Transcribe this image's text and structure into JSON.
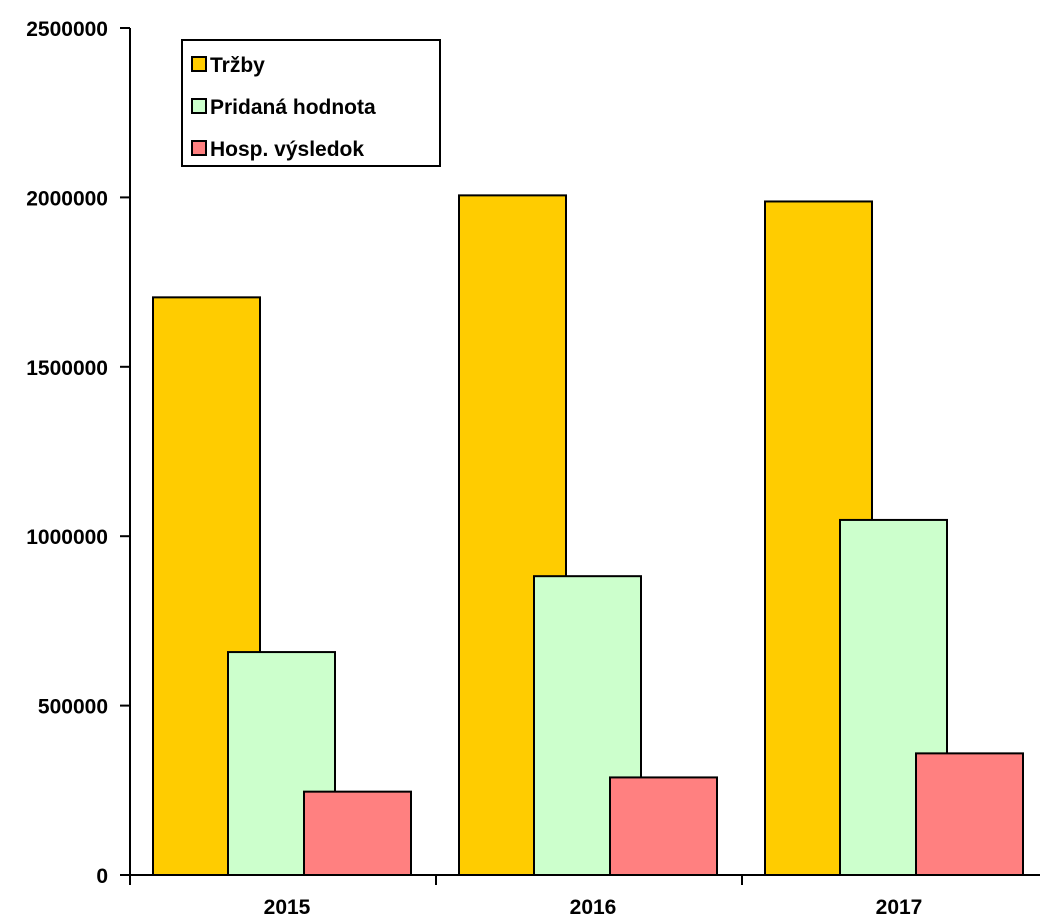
{
  "chart_data": {
    "type": "bar",
    "categories": [
      "2015",
      "2016",
      "2017"
    ],
    "series": [
      {
        "name": "Tržby",
        "color": "#FFCC00",
        "values": [
          1705000,
          2006000,
          1988000
        ]
      },
      {
        "name": "Pridaná hodnota",
        "color": "#CCFFCC",
        "values": [
          658000,
          882000,
          1048000
        ]
      },
      {
        "name": "Hosp. výsledok",
        "color": "#FF8080",
        "values": [
          246000,
          288000,
          359000
        ]
      }
    ],
    "ylim": [
      0,
      2500000
    ],
    "yticks": [
      0,
      500000,
      1000000,
      1500000,
      2000000,
      2500000
    ],
    "ytick_labels": [
      "0",
      "500000",
      "1000000",
      "1500000",
      "2000000",
      "2500000"
    ],
    "grid": false,
    "legend_position": "top-left"
  }
}
